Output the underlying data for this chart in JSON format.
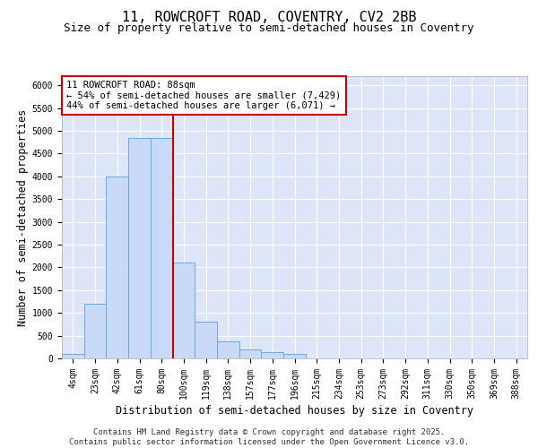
{
  "title_line1": "11, ROWCROFT ROAD, COVENTRY, CV2 2BB",
  "title_line2": "Size of property relative to semi-detached houses in Coventry",
  "xlabel": "Distribution of semi-detached houses by size in Coventry",
  "ylabel": "Number of semi-detached properties",
  "categories": [
    "4sqm",
    "23sqm",
    "42sqm",
    "61sqm",
    "80sqm",
    "100sqm",
    "119sqm",
    "138sqm",
    "157sqm",
    "177sqm",
    "196sqm",
    "215sqm",
    "234sqm",
    "253sqm",
    "273sqm",
    "292sqm",
    "311sqm",
    "330sqm",
    "350sqm",
    "369sqm",
    "388sqm"
  ],
  "values": [
    100,
    1200,
    4000,
    4850,
    4850,
    2100,
    800,
    380,
    200,
    130,
    90,
    0,
    0,
    0,
    0,
    0,
    0,
    0,
    0,
    0,
    0
  ],
  "bar_color": "#c9daf8",
  "bar_edge_color": "#6fa8dc",
  "vline_color": "#cc0000",
  "vline_x": 4.5,
  "annotation_text": "11 ROWCROFT ROAD: 88sqm\n← 54% of semi-detached houses are smaller (7,429)\n44% of semi-detached houses are larger (6,071) →",
  "annotation_box_color": "#ffffff",
  "annotation_box_edge": "#cc0000",
  "ylim": [
    0,
    6200
  ],
  "yticks": [
    0,
    500,
    1000,
    1500,
    2000,
    2500,
    3000,
    3500,
    4000,
    4500,
    5000,
    5500,
    6000
  ],
  "footer_line1": "Contains HM Land Registry data © Crown copyright and database right 2025.",
  "footer_line2": "Contains public sector information licensed under the Open Government Licence v3.0.",
  "background_color": "#dce6f8",
  "grid_color": "#ffffff",
  "title_fontsize": 11,
  "subtitle_fontsize": 9,
  "axis_label_fontsize": 8.5,
  "tick_fontsize": 7,
  "footer_fontsize": 6.5
}
